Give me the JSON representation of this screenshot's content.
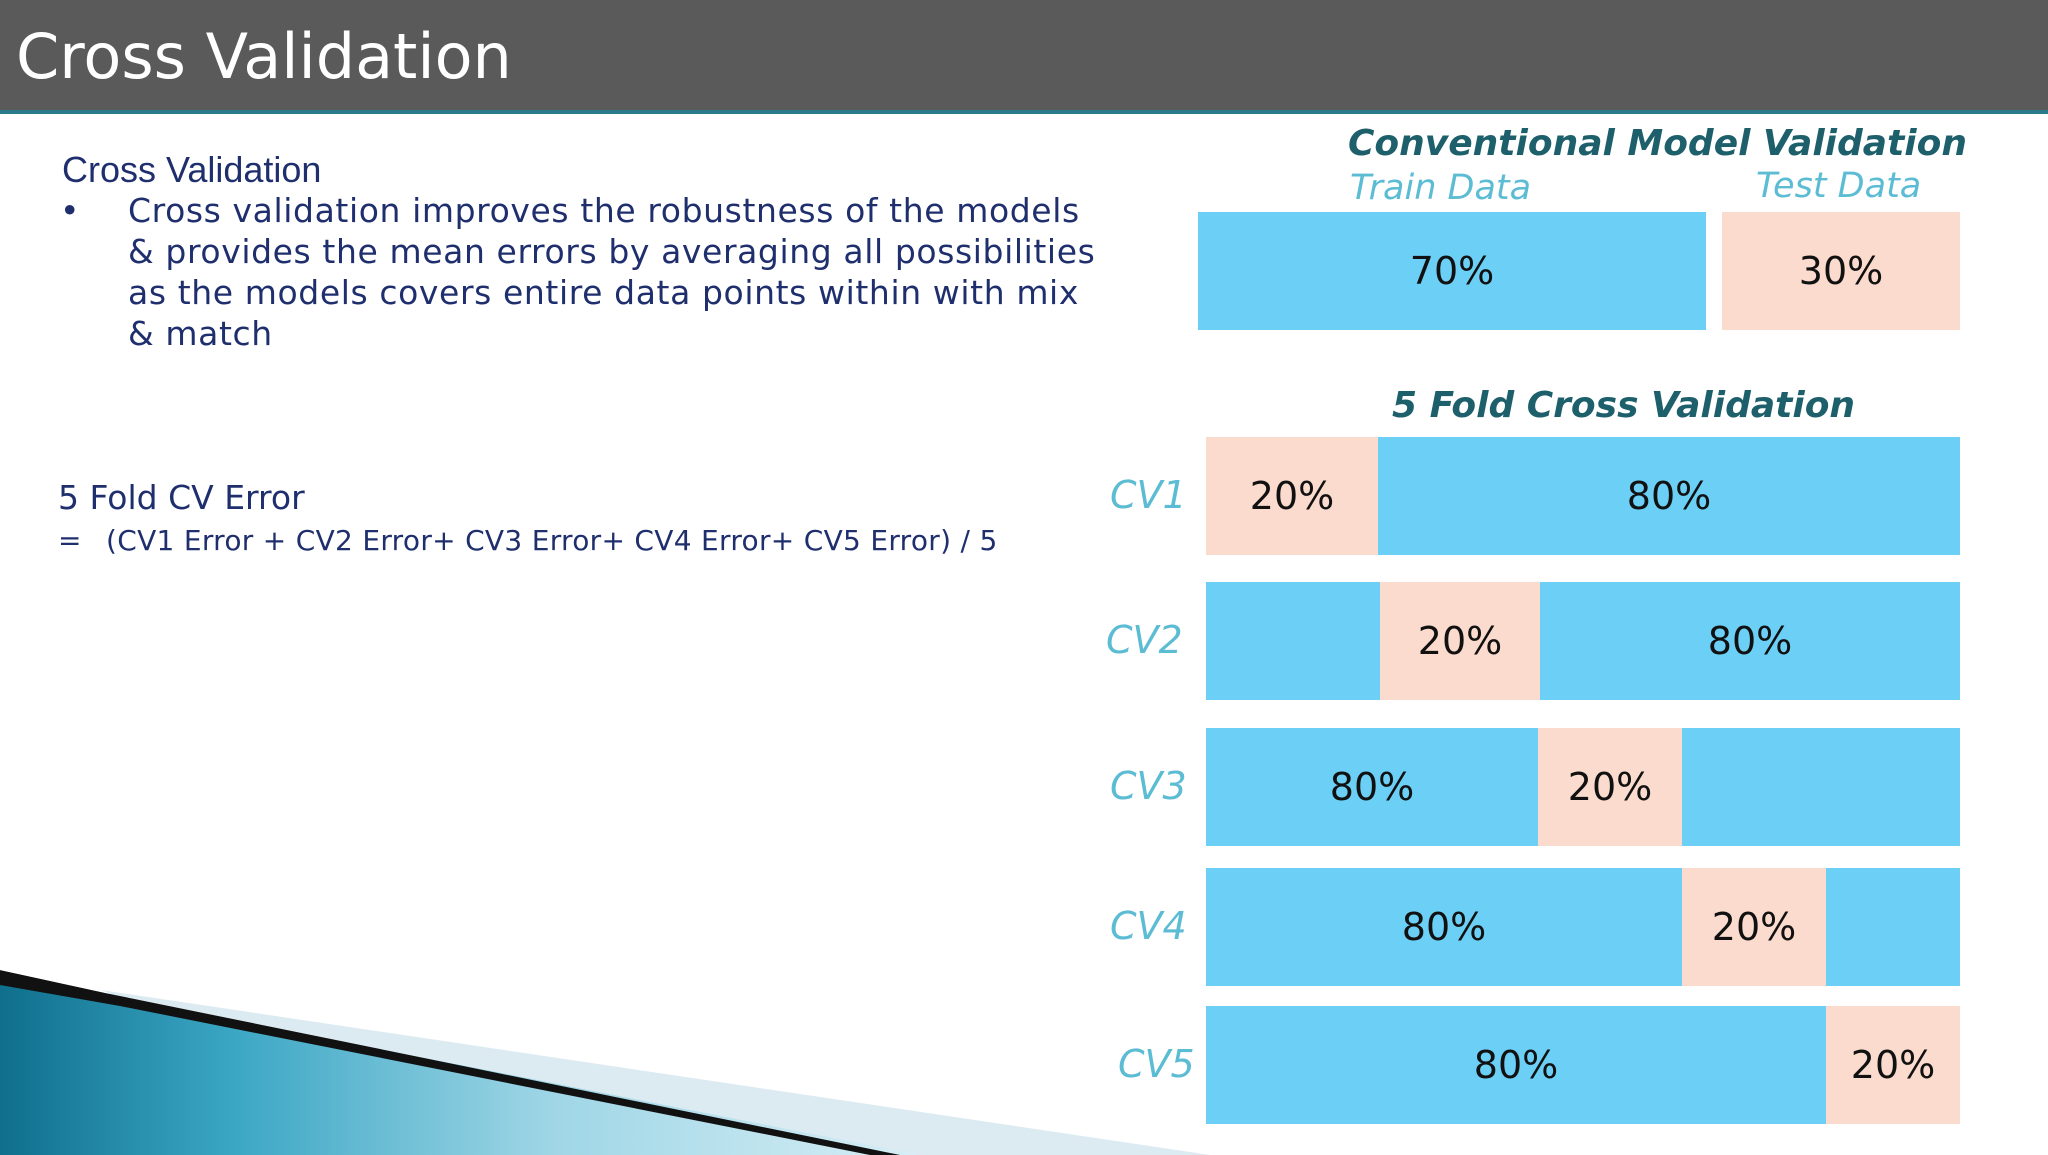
{
  "title": "Cross Validation",
  "left": {
    "heading": "Cross Validation",
    "bullet_marker": "•",
    "bullet_lines": [
      "Cross validation improves the robustness of the models",
      "& provides the mean errors by averaging all possibilities",
      "as the models covers entire data points within with mix",
      "& match"
    ],
    "cv_error_title": "5 Fold CV Error",
    "cv_error_eq": "=",
    "cv_error_formula": "(CV1 Error + CV2 Error+ CV3 Error+ CV4 Error+ CV5 Error) / 5"
  },
  "conventional": {
    "heading": "Conventional Model Validation",
    "train_label": "Train Data",
    "test_label": "Test Data",
    "train_pct": "70%",
    "test_pct": "30%"
  },
  "fold": {
    "heading": "5 Fold Cross Validation",
    "rows": [
      {
        "label": "CV1",
        "segments": [
          {
            "kind": "test",
            "text": "20%"
          },
          {
            "kind": "train",
            "text": "80%"
          }
        ]
      },
      {
        "label": "CV2",
        "segments": [
          {
            "kind": "train",
            "text": ""
          },
          {
            "kind": "test",
            "text": "20%"
          },
          {
            "kind": "train",
            "text": "80%"
          }
        ]
      },
      {
        "label": "CV3",
        "segments": [
          {
            "kind": "train",
            "text": "80%"
          },
          {
            "kind": "test",
            "text": "20%"
          },
          {
            "kind": "train",
            "text": ""
          }
        ]
      },
      {
        "label": "CV4",
        "segments": [
          {
            "kind": "train",
            "text": "80%"
          },
          {
            "kind": "test",
            "text": "20%"
          },
          {
            "kind": "train",
            "text": ""
          }
        ]
      },
      {
        "label": "CV5",
        "segments": [
          {
            "kind": "train",
            "text": "80%"
          },
          {
            "kind": "test",
            "text": "20%"
          }
        ]
      }
    ]
  },
  "colors": {
    "title_bar": "#5a5a5a",
    "title_accent": "#2b7a8c",
    "train": "#6ccff6",
    "test": "#fadbcd",
    "heading_dark": "#1d5f6a",
    "heading_light": "#5bbcd4",
    "body_text": "#1f2f6e"
  }
}
